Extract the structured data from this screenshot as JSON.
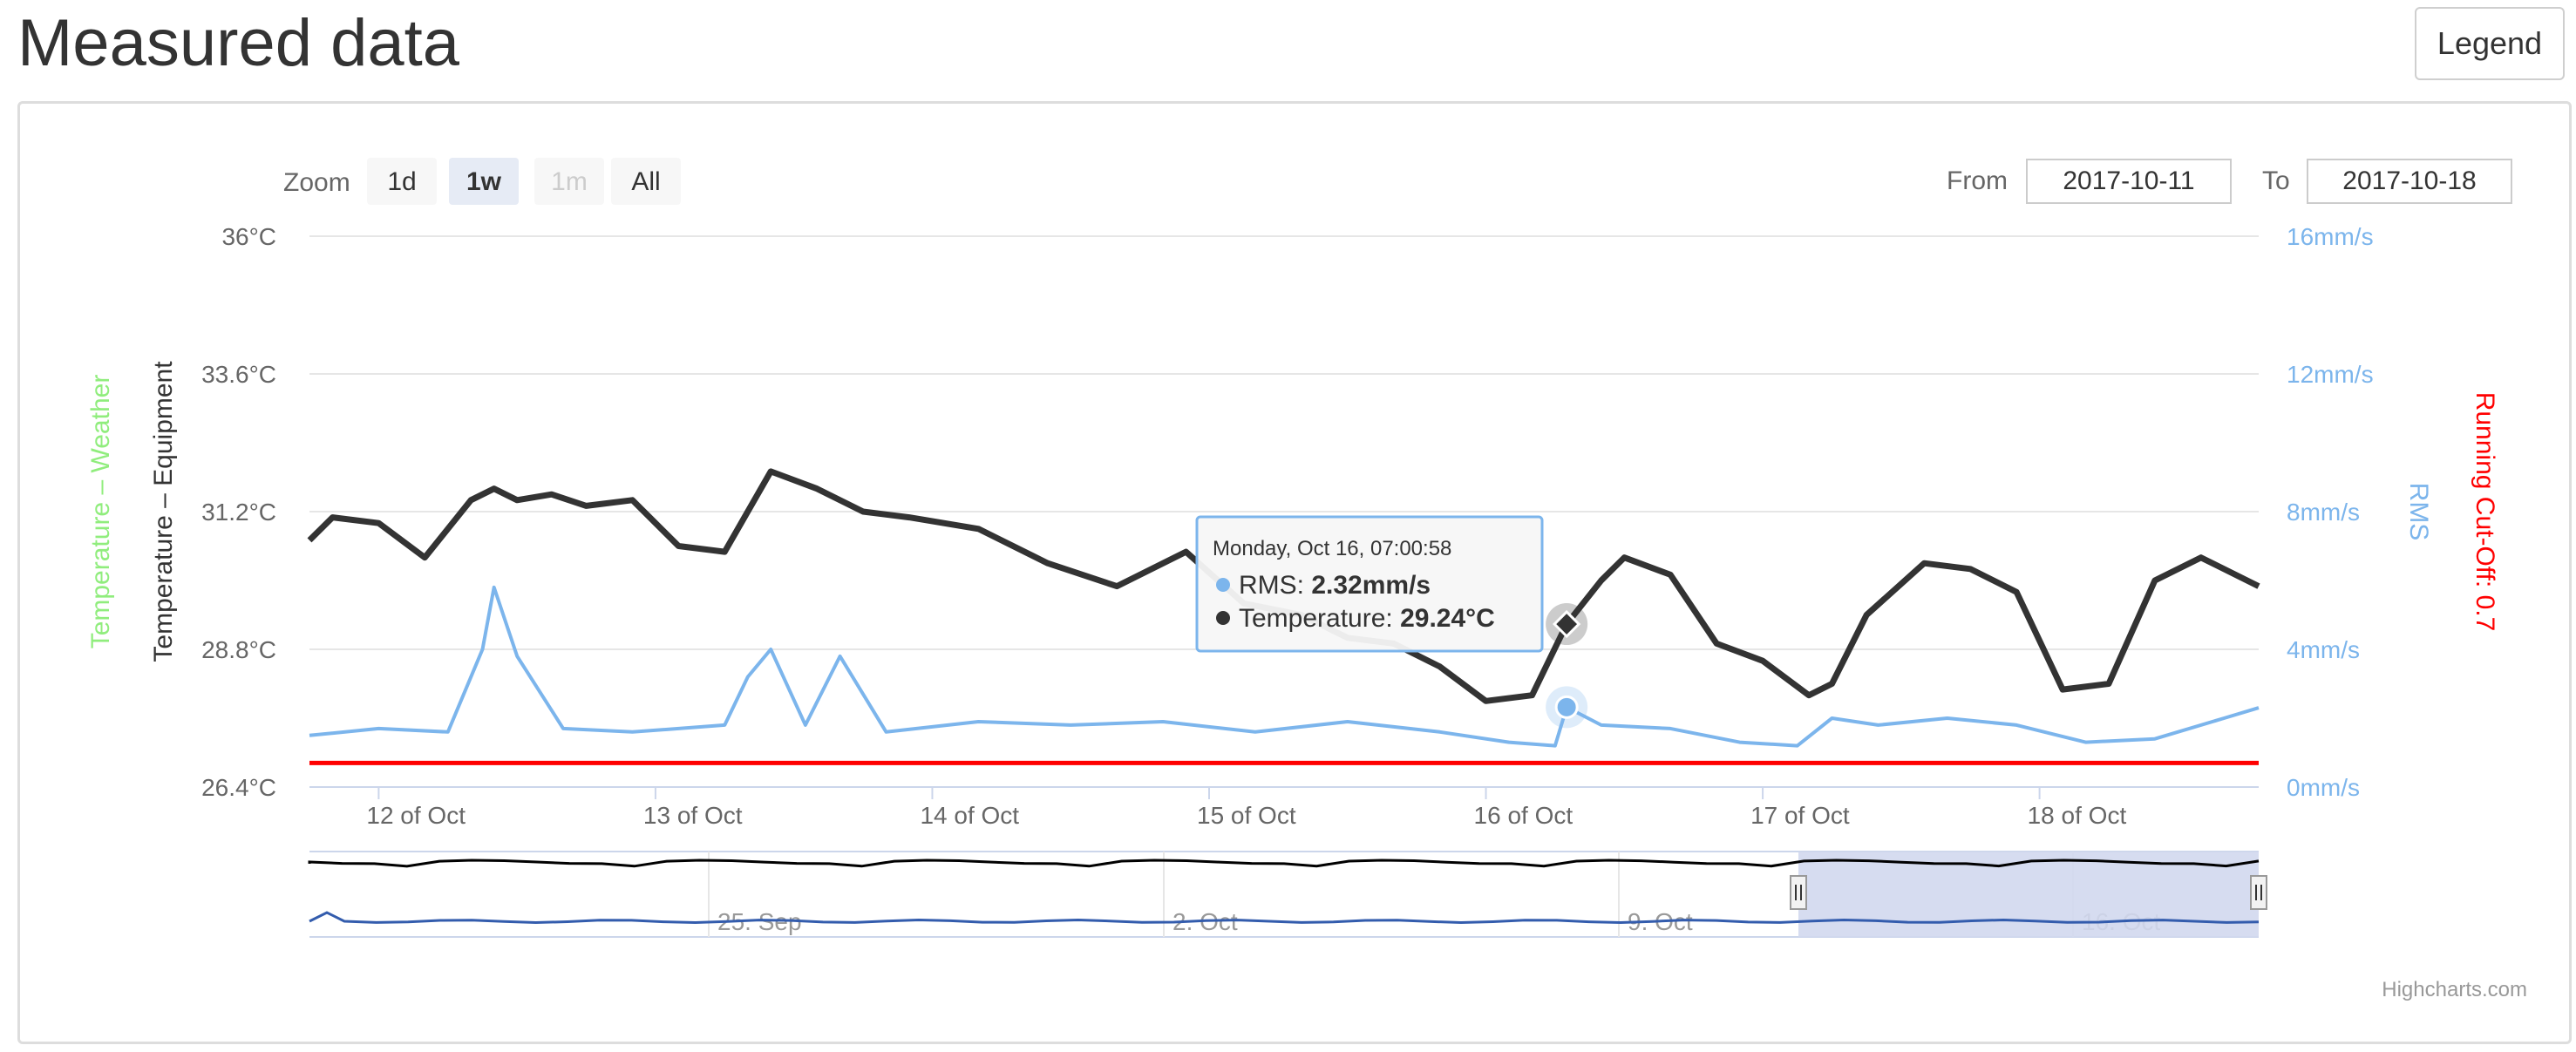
{
  "page": {
    "title": "Measured data",
    "legend_button": "Legend"
  },
  "range_selector": {
    "zoom_label": "Zoom",
    "buttons": [
      {
        "label": "1d",
        "state": "normal"
      },
      {
        "label": "1w",
        "state": "selected"
      },
      {
        "label": "1m",
        "state": "disabled"
      },
      {
        "label": "All",
        "state": "normal"
      }
    ],
    "from_label": "From",
    "from_value": "2017-10-11",
    "to_label": "To",
    "to_value": "2017-10-18"
  },
  "credits": "Highcharts.com",
  "colors": {
    "temperature": "#333333",
    "rms": "#7cb5ec",
    "cutoff": "#ff0000",
    "weather_axis": "#90ed7d",
    "cutoff_axis": "#ff0000",
    "navigator_fill": "#d2d8ee",
    "navigator_rms": "#335cad"
  },
  "tooltip": {
    "header": "Monday, Oct 16, 07:00:58",
    "rows": [
      {
        "series": "RMS",
        "value": "2.32mm/s",
        "color": "#7cb5ec"
      },
      {
        "series": "Temperature",
        "value": "29.24°C",
        "color": "#333333"
      }
    ]
  },
  "chart_data": {
    "type": "line",
    "x_axis": {
      "type": "datetime",
      "range": [
        "2017-10-11 18:00",
        "2017-10-18 19:00"
      ],
      "tick_labels": [
        "12 of Oct",
        "13 of Oct",
        "14 of Oct",
        "15 of Oct",
        "16 of Oct",
        "17 of Oct",
        "18 of Oct"
      ]
    },
    "y_axes": [
      {
        "title": "Temperature – Weather",
        "side": "left",
        "color": "#90ed7d"
      },
      {
        "title": "Temperature – Equipment",
        "side": "left",
        "color": "#333333",
        "range": [
          26.4,
          36
        ],
        "tick_labels": [
          "26.4°C",
          "28.8°C",
          "31.2°C",
          "33.6°C",
          "36°C"
        ]
      },
      {
        "title": "RMS",
        "side": "right",
        "color": "#7cb5ec",
        "range": [
          0,
          16
        ],
        "tick_labels": [
          "0mm/s",
          "4mm/s",
          "8mm/s",
          "12mm/s",
          "16mm/s"
        ]
      },
      {
        "title": "Running Cut-Off: 0.7",
        "side": "right",
        "color": "#ff0000"
      }
    ],
    "grid": true,
    "series": [
      {
        "name": "Temperature",
        "unit": "°C",
        "axis": 1,
        "x": [
          "2017-10-11 18:00",
          "2017-10-11 20:00",
          "2017-10-12 00:00",
          "2017-10-12 04:00",
          "2017-10-12 08:00",
          "2017-10-12 10:00",
          "2017-10-12 12:00",
          "2017-10-12 15:00",
          "2017-10-12 18:00",
          "2017-10-12 22:00",
          "2017-10-13 02:00",
          "2017-10-13 06:00",
          "2017-10-13 10:00",
          "2017-10-13 14:00",
          "2017-10-13 18:00",
          "2017-10-13 22:00",
          "2017-10-14 04:00",
          "2017-10-14 10:00",
          "2017-10-14 16:00",
          "2017-10-14 22:00",
          "2017-10-15 03:00",
          "2017-10-15 08:00",
          "2017-10-15 12:00",
          "2017-10-15 16:00",
          "2017-10-15 20:00",
          "2017-10-16 00:00",
          "2017-10-16 04:00",
          "2017-10-16 07:00",
          "2017-10-16 10:00",
          "2017-10-16 12:00",
          "2017-10-16 16:00",
          "2017-10-16 20:00",
          "2017-10-17 00:00",
          "2017-10-17 04:00",
          "2017-10-17 06:00",
          "2017-10-17 09:00",
          "2017-10-17 14:00",
          "2017-10-17 18:00",
          "2017-10-17 22:00",
          "2017-10-18 02:00",
          "2017-10-18 06:00",
          "2017-10-18 10:00",
          "2017-10-18 14:00",
          "2017-10-18 19:00"
        ],
        "values": [
          30.7,
          31.1,
          31.0,
          30.4,
          31.4,
          31.6,
          31.4,
          31.5,
          31.3,
          31.4,
          30.6,
          30.5,
          31.9,
          31.6,
          31.2,
          31.1,
          30.9,
          30.3,
          29.9,
          30.5,
          29.6,
          29.4,
          29.0,
          28.9,
          28.5,
          27.9,
          28.0,
          29.24,
          30.0,
          30.4,
          30.1,
          28.9,
          28.6,
          28.0,
          28.2,
          29.4,
          30.3,
          30.2,
          29.8,
          28.1,
          28.2,
          30.0,
          30.4,
          29.9
        ]
      },
      {
        "name": "RMS",
        "unit": "mm/s",
        "axis": 2,
        "x": [
          "2017-10-11 18:00",
          "2017-10-12 00:00",
          "2017-10-12 06:00",
          "2017-10-12 09:00",
          "2017-10-12 10:00",
          "2017-10-12 12:00",
          "2017-10-12 16:00",
          "2017-10-12 22:00",
          "2017-10-13 06:00",
          "2017-10-13 08:00",
          "2017-10-13 10:00",
          "2017-10-13 13:00",
          "2017-10-13 16:00",
          "2017-10-13 20:00",
          "2017-10-14 04:00",
          "2017-10-14 12:00",
          "2017-10-14 20:00",
          "2017-10-15 04:00",
          "2017-10-15 12:00",
          "2017-10-15 20:00",
          "2017-10-16 02:00",
          "2017-10-16 06:00",
          "2017-10-16 07:00",
          "2017-10-16 10:00",
          "2017-10-16 16:00",
          "2017-10-16 22:00",
          "2017-10-17 03:00",
          "2017-10-17 06:00",
          "2017-10-17 10:00",
          "2017-10-17 16:00",
          "2017-10-17 22:00",
          "2017-10-18 04:00",
          "2017-10-18 10:00",
          "2017-10-18 16:00",
          "2017-10-18 19:00"
        ],
        "values": [
          1.5,
          1.7,
          1.6,
          4.0,
          5.8,
          3.8,
          1.7,
          1.6,
          1.8,
          3.2,
          4.0,
          1.8,
          3.8,
          1.6,
          1.9,
          1.8,
          1.9,
          1.6,
          1.9,
          1.6,
          1.3,
          1.2,
          2.32,
          1.8,
          1.7,
          1.3,
          1.2,
          2.0,
          1.8,
          2.0,
          1.8,
          1.3,
          1.4,
          2.0,
          2.3
        ]
      },
      {
        "name": "Running Cut-Off",
        "unit": "mm/s",
        "axis": 2,
        "x": [
          "2017-10-11 18:00",
          "2017-10-18 19:00"
        ],
        "values": [
          0.7,
          0.7
        ]
      }
    ],
    "navigator": {
      "tick_labels": [
        "25. Sep",
        "2. Oct",
        "9. Oct",
        "16. Oct"
      ],
      "selection": [
        "2017-10-11",
        "2017-10-18"
      ]
    }
  }
}
